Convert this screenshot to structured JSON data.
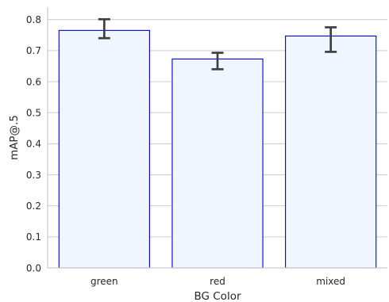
{
  "chart_data": {
    "type": "bar",
    "categories": [
      "green",
      "red",
      "mixed"
    ],
    "values": [
      0.765,
      0.673,
      0.747
    ],
    "error_low": [
      0.74,
      0.64,
      0.696
    ],
    "error_high": [
      0.801,
      0.693,
      0.775
    ],
    "xlabel": "BG Color",
    "ylabel": "mAP@.5",
    "ylim": [
      0,
      0.84
    ],
    "yticks": [
      "0.0",
      "0.1",
      "0.2",
      "0.3",
      "0.4",
      "0.5",
      "0.6",
      "0.7",
      "0.8"
    ],
    "grid": "horizontal",
    "colors": {
      "bar_fill": "#f0f6ff",
      "bar_edge": "#0000cc",
      "error_bar": "#3f3f3f",
      "grid": "#cccccc",
      "spine": "#cccccc"
    }
  }
}
